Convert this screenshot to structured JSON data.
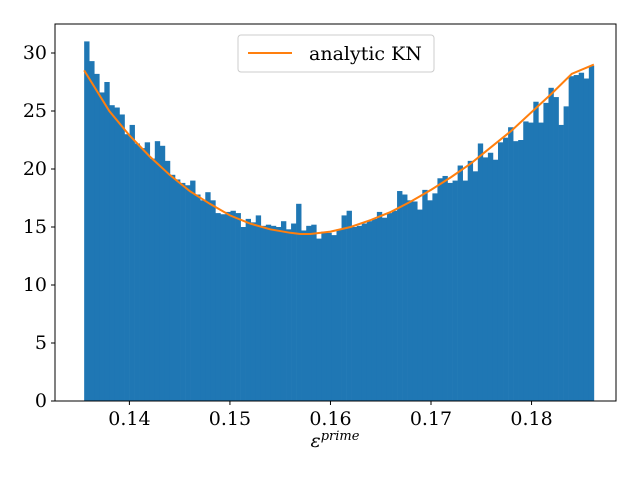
{
  "chart_data": {
    "type": "bar",
    "title": "",
    "xlabel_base": "ε",
    "xlabel_sup": "prime",
    "ylabel": "",
    "xlim": [
      0.1326,
      0.1884
    ],
    "ylim": [
      0,
      32.5
    ],
    "xticks": [
      0.14,
      0.15,
      0.16,
      0.17,
      0.18
    ],
    "xtick_labels": [
      "0.14",
      "0.15",
      "0.16",
      "0.17",
      "0.18"
    ],
    "yticks": [
      0,
      5,
      10,
      15,
      20,
      25,
      30
    ],
    "ytick_labels": [
      "0",
      "5",
      "10",
      "15",
      "20",
      "25",
      "30"
    ],
    "grid": false,
    "legend_position": "upper center",
    "histogram": {
      "color": "#1f77b4",
      "bin_start": 0.1355,
      "bin_end": 0.1862,
      "values": [
        31.0,
        29.3,
        28.2,
        26.6,
        27.5,
        25.5,
        25.3,
        24.7,
        23.0,
        23.8,
        22.2,
        21.8,
        22.3,
        20.9,
        22.4,
        22.0,
        20.7,
        19.5,
        19.1,
        18.8,
        18.6,
        19.0,
        17.8,
        17.3,
        18.0,
        17.3,
        16.2,
        16.1,
        16.3,
        16.4,
        16.2,
        15.0,
        15.7,
        15.4,
        16.0,
        15.1,
        15.2,
        15.1,
        15.0,
        15.5,
        14.8,
        15.3,
        17.0,
        14.7,
        15.1,
        15.2,
        14.0,
        14.6,
        14.5,
        14.3,
        14.8,
        16.0,
        16.4,
        15.0,
        15.1,
        15.3,
        15.5,
        15.7,
        16.3,
        15.8,
        16.2,
        16.4,
        18.1,
        17.8,
        17.3,
        17.2,
        16.5,
        18.2,
        17.3,
        17.9,
        19.2,
        19.4,
        18.8,
        19.0,
        20.3,
        19.0,
        20.7,
        19.8,
        22.2,
        21.0,
        21.4,
        20.8,
        22.3,
        22.7,
        23.6,
        22.4,
        22.5,
        24.1,
        24.0,
        25.8,
        24.0,
        25.7,
        27.0,
        26.2,
        23.8,
        25.4,
        28.0,
        28.1,
        28.3,
        27.8,
        28.9
      ]
    },
    "series": [
      {
        "name": "analytic KN",
        "color": "#ff7f0e",
        "x": [
          0.1355,
          0.138,
          0.14,
          0.142,
          0.144,
          0.146,
          0.148,
          0.15,
          0.152,
          0.154,
          0.156,
          0.157,
          0.158,
          0.16,
          0.162,
          0.164,
          0.166,
          0.168,
          0.17,
          0.172,
          0.174,
          0.176,
          0.178,
          0.18,
          0.182,
          0.184,
          0.1862
        ],
        "y": [
          28.5,
          25.0,
          22.9,
          21.1,
          19.5,
          18.1,
          17.0,
          16.0,
          15.3,
          14.8,
          14.5,
          14.4,
          14.4,
          14.6,
          15.0,
          15.6,
          16.3,
          17.2,
          18.2,
          19.3,
          20.5,
          21.9,
          23.3,
          24.9,
          26.5,
          28.2,
          29.0
        ]
      }
    ]
  }
}
